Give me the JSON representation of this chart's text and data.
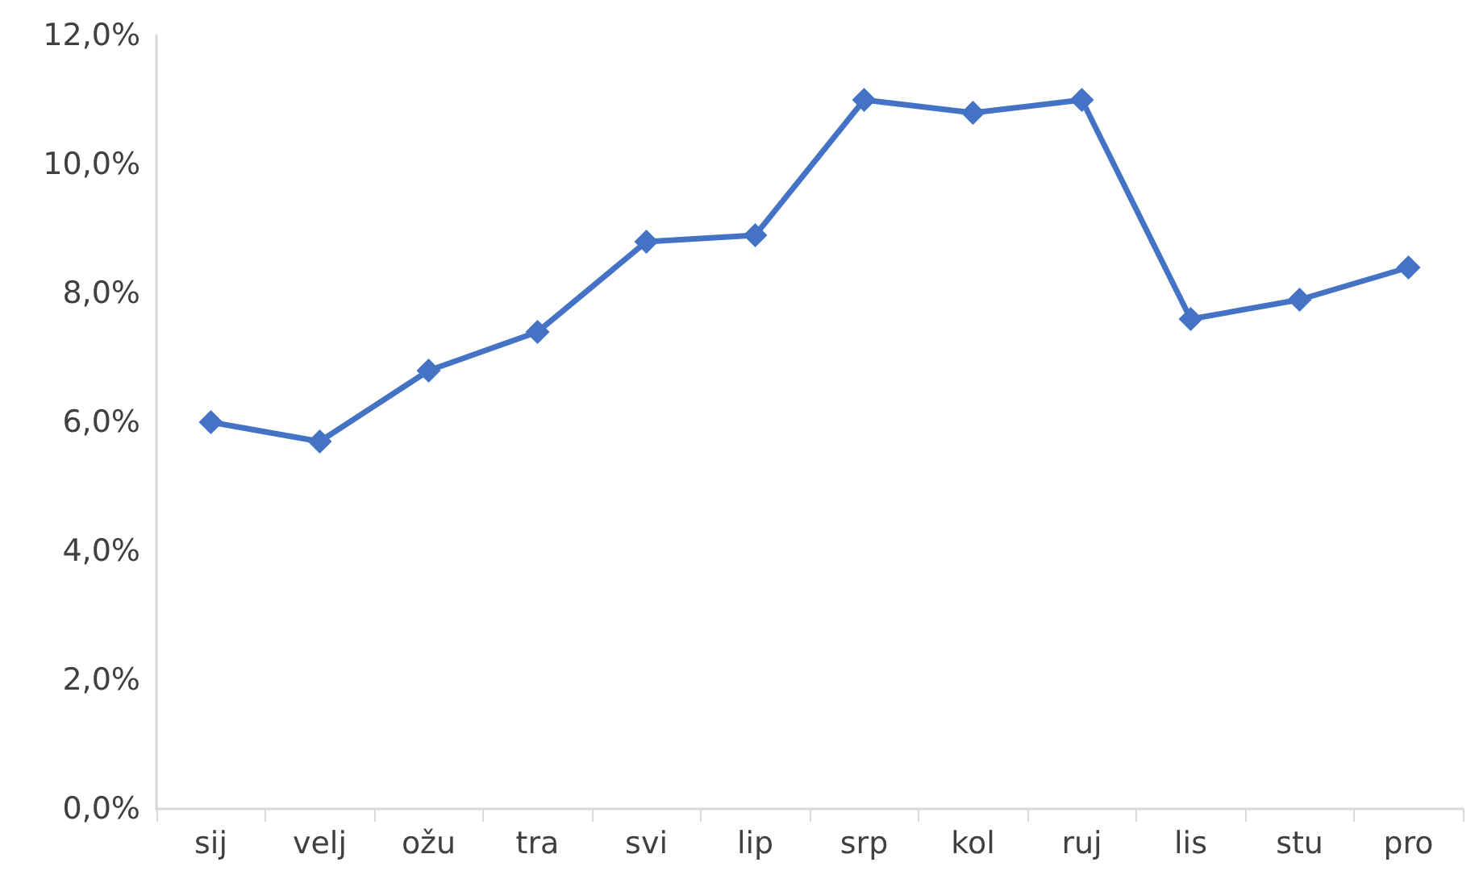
{
  "chart_data": {
    "type": "line",
    "categories": [
      "sij",
      "velj",
      "ožu",
      "tra",
      "svi",
      "lip",
      "srp",
      "kol",
      "ruj",
      "lis",
      "stu",
      "pro"
    ],
    "series": [
      {
        "color": "#4472c4",
        "values": [
          6.0,
          5.7,
          6.8,
          7.4,
          8.8,
          8.9,
          11.0,
          10.8,
          11.0,
          7.6,
          7.9,
          8.4
        ]
      }
    ],
    "ylim": [
      0,
      12
    ],
    "yticks": [
      {
        "value": 0,
        "label": "0,0%"
      },
      {
        "value": 2,
        "label": "2,0%"
      },
      {
        "value": 4,
        "label": "4,0%"
      },
      {
        "value": 6,
        "label": "6,0%"
      },
      {
        "value": 8,
        "label": "8,0%"
      },
      {
        "value": 10,
        "label": "10,0%"
      },
      {
        "value": 12,
        "label": "12,0%"
      }
    ],
    "grid": false,
    "marker": "diamond",
    "line_style": "solid"
  }
}
